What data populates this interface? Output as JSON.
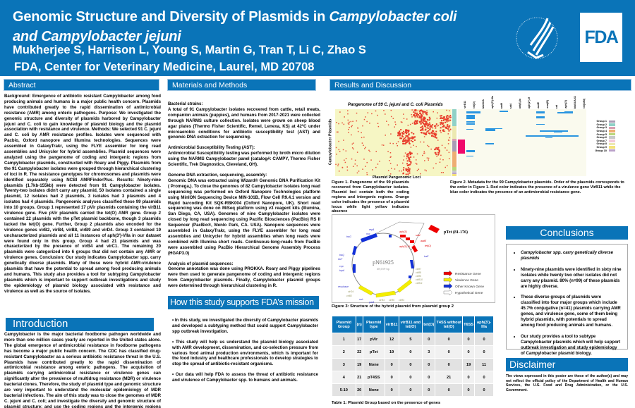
{
  "header": {
    "title_a": "Genomic Structure and Diversity of Plasmids in ",
    "title_b": "Campylobacter coli",
    "title_c": "and Campylobacter jejuni",
    "authors": "Mukherjee S, Harrison L, Young S, Martin G, Tran T, Li C, Zhao S",
    "affiliation": "FDA, Center for Veterinary Medicine, Laurel, MD 20708",
    "logo": "FDA",
    "hhs_seal": "Department of Health & Human Services USA"
  },
  "sections": {
    "abstract": "Abstract",
    "methods": "Materials and Methods",
    "results": "Results and Discussion",
    "introduction": "Introduction",
    "mission": "How this study supports FDA’s mission",
    "conclusions": "Conclusions",
    "disclaimer": "Disclaimer"
  },
  "abstract": "Background: Emergence of antibiotic resistant Campylobacter among food producing animals and humans is a major public health concern. Plasmids have contributed greatly to the rapid dissemination of antimicrobial resistance (AMR) among enteric pathogens. Purpose: We investigated the genomic structure and diversity of plasmids harbored by Campylobacter jejuni and C. coli to gain knowledge of plasmid biology and the plasmid association with resistance and virulence. Methods: We selected 91 C. jejuni and C. coli by AMR resistance profiles. Isolates were sequenced with Pacbio, Oxford nanopore and Illumina technologies. Sequences were assembled in GalaxyTrakr, using the FLYE assembler for long read assemblies and Unicycler for hybrid assemblies. Plasmid sequences were analyzed using the pangenome of coding and intergenic regions from Campylobacter plasmids, constructed with Roary and Piggy. Plasmids from the 91 Campylobacter isolates were grouped through hierarchical clustering of loci in R. The resistance genotypes for chromosomes and plasmids were identified separately using NCBI AMRFinderPlus. Results: Ninety-nine plasmids (1.7kb-155kb) were detected from 91 Campylobacter isolates. Twenty-two isolates didn't carry any plasmid, 50 isolates contained a single plasmid, 12 isolates had 2 plasmids, 3 isolates had 3 plasmids and 4 isolates had 4 plasmids. Pangenomic analyses classified these 99 plasmids into 10 groups. Group 1 represented 17 pVir plasmids containing the virB11 virulence gene. Five pVir plasmids carried the tet(O) AMR gene. Group 2 contained 22 plasmids with the pTet plasmid backbone, though 3 plasmids lacked the tet(O) gene. Further, Group 2 plasmids also encoded for the virulence genes virB2, virB4, virB8, virB9 and virD4. Group 3 contained 19 uncharacterized plasmids and all 11 instances of aph(3')-VIIa in our dataset were found only in this group. Group 4 had 21 plasmids and was characterized by the presence of virB4 and virC1. The remaining 20 plasmids were categorized into 6 groups that did not contain any AMR or virulence genes. Conclusion: Our study indicates Campylobacter spp. carry genetically diverse plasmids. Many of these were hybrid AMR-virulence plasmids that have the potential to spread among food producing animals and humans. This study also provides a tool for subtyping Campylobacter plasmids which is important to support outbreak investigations and study the epidemiology of plasmid biology associated with resistance and virulence as well as the source of isolates.",
  "introduction": "Campylobacter is the major bacterial foodborne pathogen worldwide and more than one million cases yearly are reported in the United states alone. The global emergence of antimicrobial resistance in foodborne pathogens has become a major public health concern. The CDC has classified drug-resistant Campylobacter as a serious antibiotic resistance threat in the U.S. Plasmids have contributed greatly to the rapid dissemination of antimicrobial resistance among enteric pathogens. The acquisition of plasmids carrying antimicrobial resistance or virulence genes can significantly alter the prevalence of multidrug resistance (MDR) or virulence bacterial clones. Therefore, the study of plasmid type and genomic structure are very important to understand the molecular epidemiology of MDR bacterial infections. The aim of this study was to close the genomes of MDR C. jejuni and C. coli; and investigate the diversity and genomic structure of plasmid structure; and use the coding regions and the intergenic regions (pangenomes) to develop a subtyping scheme for Campylobacter plasmids. Knowing plasmid diversity and the subtype will help us to understand antimicrobial resistance development, dissemination and co-selection pressure from different food animal production environments.",
  "methods": [
    {
      "heading": "Bacterial strains:",
      "text": "A total of 91 Campylobacter isolates recovered from cattle, retail meats, companion animals (puppies), and humans from 2017-2021 were collected through NARMS culture collection. Isolates were grown on sheep blood agar plates (Thermo Fisher Scientific, Remel, Lenexa, KS) at 42ºC under microaerobic conditions for antibiotic susceptibility test (AST) and genomic DNA extraction for sequencing."
    },
    {
      "heading": "Antimicrobial Susceptibility Testing (AST):",
      "text": "Antimicrobial Susceptibility testing was performed by broth micro dilution using the NARMS Campylobacter panel (catalog#: CAMPY, Thermo Fisher Scientific, Trek Diagnostics, Cleveland, OH)."
    },
    {
      "heading": "Genome DNA extraction, sequencing, assembly:",
      "text": "Genomic DNA was extracted using Wizard® Genomic DNA Purification Kit ( Promega,). To close the genomes of 82 Campylobacter isolates long read sequencing was performed on Oxford Nanopore Technologies platform using MinION Sequencing Device MIN-101B, Flow Cell R9.4.1 version and Rapid barcoding Kit SQK-RBK004 (Oxford Nanopore, UK). Short read sequencing was done on MiSeq platform using v3 reagent kits (Illumina, San Diego, CA, USA). Genomes of nine Campylobacter isolates were closed by long read sequencing using Pacific Biosciences (PacBio) RS II Sequencer (PacBio®, Menlo Park, CA. USA). Nanopore sequences were assembled in GalaxyTrakr, using the FLYE assembler for long read assemblies and Unicycler for hybrid assemblies when long reads were combined with Illumina short reads. Continuous-long-reads from PacBio were assembled using PacBio Hierarchical Genome Assembly Process (HGAP3.0)"
    },
    {
      "heading": "Analysis of plasmid sequences:",
      "text": "Genome annotation was done using PROKKA. Roary and Piggy pipelines were then used to generate pangenome of coding and intergenic regions from Campylobacter plasmids. Finally, Campylobacter plasmid groups were determined through hierarchical clustering in R."
    }
  ],
  "mission": [
    "• In this study, we investigated the diversity of Campylobacter plasmids and developed a subtyping method that could support Campylobacter spp outbreak investigation.",
    "• This study will help us understand the plasmid biology associated with AMR development, dissemination, and co-selection pressure from various food animal production environments, which is important for the food industry and healthcare professionals to develop strategies to stop the spread of antibiotic-resistant organisms.",
    "• Our data will help FDA to assess the threat of antibiotic resistance and virulence of Campylobacter spp. to humans and  animals."
  ],
  "figure1": {
    "title": "Pangenome of 99 C. jejuni and C. coli Plasmids",
    "xlabel": "Plasmid Pangenomic Loci",
    "ylabel": "Campylobacter Plasmids",
    "caption": "Figure 1. Pangenome of the 99 plasmids recovered from Campylobacter isolates.  Plasmid loci contain both the coding regions and intergenic regions.  Orange color indicates the presence of a plasmid locus while light yellow indicates absence"
  },
  "figure2": {
    "columns": [
      "virB11",
      "tet(O)",
      "blaOXA",
      "aph(3')-IIIa",
      "aad9",
      "sat4",
      "ant(6)-Ia",
      "aph(2'')-If",
      "aadE",
      "erm(B)",
      "cat",
      "aph(3')",
      "blaOXA-61",
      "tet(O/M)"
    ],
    "legend": [
      "Group 1",
      "Group 2",
      "Group 3",
      "Group 4",
      "Group 5",
      "Group 6",
      "Group 7",
      "Group 8",
      "Group 9",
      "Group 10"
    ],
    "group_colors": [
      "#a99cb4",
      "#8fd1c6",
      "#d9a0b3",
      "#eeae72",
      "#b9d77a",
      "#c9c9c9",
      "#f2c9d9",
      "#ece9b0",
      "#f4e27a",
      "#b9a0c9"
    ],
    "caption": "Figure 2. Metadata for the 99 Campylobacter plasmids.  Order of the plasmids corresponds to the order in Figure 1.  Red color indicates the presence of a virulence gene VirB11 while the blue color indicates the presence of an antimicrobial resistance gene."
  },
  "figure3": {
    "name": "pN61925",
    "size": "48,019 bp",
    "insert": "pTet (81-176)",
    "resistance_genes": [
      "aph(3')",
      "sat4",
      "aadE",
      "tet(O)",
      "aph(3')-III"
    ],
    "virulence_genes": [
      "virB7",
      "virB8",
      "virB9",
      "virB10",
      "virB11",
      "virD4",
      "virB4",
      "virB6",
      "virB3",
      "virB2"
    ],
    "other_genes": [
      "repA",
      "nuc",
      "traG",
      "traQ",
      "trbF",
      "cop",
      "topA",
      "resolvase",
      "ssb",
      "parA",
      "traE"
    ],
    "legend": [
      "Resistance Gene",
      "Virulence Gene",
      "Other Known Gene",
      "Hypothetical Gene"
    ],
    "caption": "Figure 3: Structure of  the hybrid plasmid from plasmid group 2"
  },
  "table": {
    "headers": [
      "Plasmid Group",
      "(n)",
      "Plasmid type",
      "virB11",
      "virB11 and tet(O)",
      "tet(O)",
      "T4SS without tet(O)",
      "T6SS",
      "aph(3')-IIIa"
    ],
    "rows": [
      [
        "1",
        "17",
        "pVir",
        "12",
        "5",
        "0",
        "0",
        "0",
        "0"
      ],
      [
        "2",
        "22",
        "pTet",
        "19",
        "0",
        "3",
        "0",
        "0",
        "0"
      ],
      [
        "3",
        "19",
        "None",
        "0",
        "0",
        "0",
        "0",
        "19",
        "11"
      ],
      [
        "4",
        "21",
        "pT4SS",
        "0",
        "0",
        "0",
        "21",
        "0",
        "0"
      ],
      [
        "5-10",
        "20",
        "None",
        "0",
        "0",
        "0",
        "0",
        "0",
        "0"
      ]
    ],
    "caption": "Table 1: Plasmid Group based on the presence of genes"
  },
  "conclusions": [
    "Campylobacter spp. carry genetically diverse plasmids",
    "Ninety-nine  plasmids were identified in sixty nine isolates while twenty two other isolates did not carry any plasmid. 80% (n=99) of these plasmids are highly diverse.",
    "These diverse groups of plasmids were classified into four major groups which include 45.7% conjugative (n=41) plasmids  carrying AMR genes, and virulence gene, some of them being hybrid plasmids, with potentials to spread among food producing animals and humans.",
    "Our study provides a tool to  subtype Campylobacter plasmids which will  help support outbreak investigation and study epidemiology of  Campylobacter plasmid biology."
  ],
  "disclaimer": "The views expressed in this poster are those of the author(s) and may not reflect the official policy of the Department of Health and Human Services, the U.S. Food and Drug Administration, or the U.S. Government."
}
